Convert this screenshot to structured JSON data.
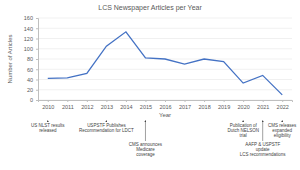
{
  "chart_data": {
    "type": "line",
    "title": "LCS Newspaper Articles per Year",
    "x_label": "Year",
    "y_label": "Number of Articles",
    "categories": [
      "2010",
      "2011",
      "2012",
      "2013",
      "2014",
      "2015",
      "2016",
      "2017",
      "2018",
      "2019",
      "2020",
      "2021",
      "2022"
    ],
    "values": [
      42,
      43,
      52,
      105,
      133,
      82,
      80,
      70,
      80,
      75,
      33,
      48,
      10
    ],
    "color": "#4472c4",
    "ylim": [
      0,
      160
    ],
    "yticks": [
      0,
      20,
      40,
      60,
      80,
      100,
      120,
      140,
      160
    ],
    "grid": true,
    "annotations": [
      {
        "x": "2010",
        "text": [
          "US NLST results",
          "released"
        ]
      },
      {
        "x": "2013",
        "text": [
          "USPSTF Publishes",
          "Recommendation for LDCT"
        ]
      },
      {
        "x": "2015",
        "text": [
          "CMS announces",
          "Medicare",
          "coverage"
        ]
      },
      {
        "x": "2020",
        "text": [
          "Publication of",
          "Dutch NELSON",
          "trial"
        ]
      },
      {
        "x": "2021",
        "text": [
          "AAFP & USPSTF",
          "update",
          "LCS recommendations"
        ]
      },
      {
        "x": "2022",
        "text": [
          "CMS releases",
          "expanded",
          "eligibility"
        ]
      }
    ]
  }
}
